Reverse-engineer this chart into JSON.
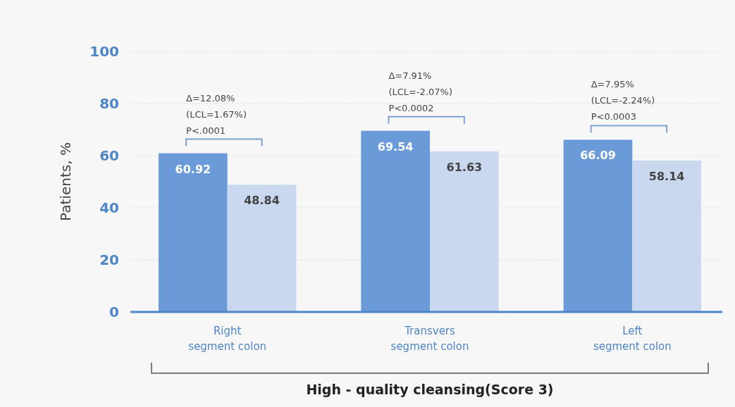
{
  "chart_data": {
    "type": "bar",
    "ylabel": "Patients, %",
    "xlabel": "High - quality cleansing(Score 3)",
    "categories": [
      "Right segment colon",
      "Transvers segment colon",
      "Left segment colon"
    ],
    "series": [
      {
        "color": "#6a9bd8",
        "values": [
          60.92,
          69.54,
          66.09
        ]
      },
      {
        "color": "#c9d8ee",
        "values": [
          48.84,
          61.63,
          58.14
        ]
      }
    ],
    "ylim": [
      0,
      100
    ],
    "yticks": [
      0,
      20,
      40,
      60,
      80,
      100
    ],
    "grid": "y",
    "data_labels": true,
    "annotations": [
      "Δ=12.08%\n(LCL=1.67%)\nP<.0001",
      "Δ=7.91%\n(LCL=-2.07%)\nP<0.0002",
      "Δ=7.95%\n(LCL=-2.24%)\nP<0.0003"
    ]
  }
}
